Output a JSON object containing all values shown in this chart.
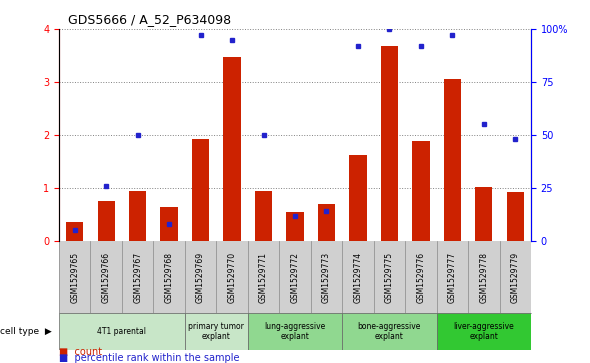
{
  "title": "GDS5666 / A_52_P634098",
  "samples": [
    "GSM1529765",
    "GSM1529766",
    "GSM1529767",
    "GSM1529768",
    "GSM1529769",
    "GSM1529770",
    "GSM1529771",
    "GSM1529772",
    "GSM1529773",
    "GSM1529774",
    "GSM1529775",
    "GSM1529776",
    "GSM1529777",
    "GSM1529778",
    "GSM1529779"
  ],
  "counts": [
    0.35,
    0.75,
    0.95,
    0.65,
    1.93,
    3.48,
    0.95,
    0.55,
    0.7,
    1.63,
    3.68,
    1.88,
    3.05,
    1.02,
    0.92
  ],
  "percentiles": [
    5,
    26,
    50,
    8,
    97,
    95,
    50,
    12,
    14,
    92,
    100,
    92,
    97,
    55,
    48
  ],
  "cell_groups": [
    {
      "label": "4T1 parental",
      "indices": [
        0,
        1,
        2,
        3
      ],
      "color": "#c8e6c8"
    },
    {
      "label": "primary tumor\nexplant",
      "indices": [
        4,
        5
      ],
      "color": "#c8e6c8"
    },
    {
      "label": "lung-aggressive\nexplant",
      "indices": [
        6,
        7,
        8
      ],
      "color": "#90d890"
    },
    {
      "label": "bone-aggressive\nexplant",
      "indices": [
        9,
        10,
        11
      ],
      "color": "#90d890"
    },
    {
      "label": "liver-aggressive\nexplant",
      "indices": [
        12,
        13,
        14
      ],
      "color": "#32c832"
    }
  ],
  "bar_color": "#cc2200",
  "dot_color": "#2222cc",
  "ylim_left": [
    0,
    4
  ],
  "ylim_right": [
    0,
    100
  ],
  "yticks_left": [
    0,
    1,
    2,
    3,
    4
  ],
  "yticks_right": [
    0,
    25,
    50,
    75,
    100
  ],
  "legend_count_color": "#cc2200",
  "legend_dot_color": "#2222cc",
  "xtick_bg": "#d0d0d0",
  "plot_bg": "#ffffff"
}
